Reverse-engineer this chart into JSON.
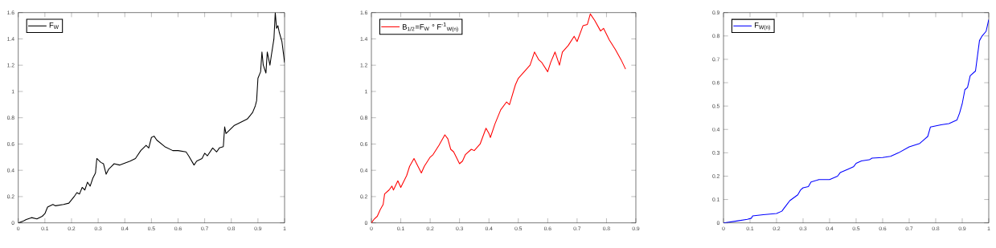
{
  "chart_data": [
    {
      "type": "line",
      "x": [
        0,
        0.02,
        0.03,
        0.05,
        0.07,
        0.09,
        0.1,
        0.11,
        0.13,
        0.14,
        0.17,
        0.19,
        0.21,
        0.22,
        0.23,
        0.24,
        0.25,
        0.26,
        0.27,
        0.28,
        0.29,
        0.295,
        0.31,
        0.32,
        0.33,
        0.34,
        0.35,
        0.36,
        0.38,
        0.42,
        0.44,
        0.46,
        0.48,
        0.49,
        0.5,
        0.51,
        0.52,
        0.55,
        0.58,
        0.6,
        0.63,
        0.64,
        0.66,
        0.67,
        0.69,
        0.7,
        0.71,
        0.73,
        0.745,
        0.755,
        0.77,
        0.775,
        0.78,
        0.81,
        0.83,
        0.86,
        0.88,
        0.89,
        0.895,
        0.9,
        0.91,
        0.915,
        0.92,
        0.93,
        0.935,
        0.945,
        0.95,
        0.96,
        0.965,
        0.97,
        0.975,
        0.98,
        0.99,
        1.0
      ],
      "series": [
        {
          "name": "F$_{W}$",
          "color": "#000000",
          "values": [
            0,
            0.015,
            0.025,
            0.04,
            0.03,
            0.05,
            0.07,
            0.12,
            0.14,
            0.13,
            0.14,
            0.15,
            0.2,
            0.23,
            0.22,
            0.27,
            0.25,
            0.31,
            0.28,
            0.34,
            0.38,
            0.49,
            0.46,
            0.45,
            0.37,
            0.41,
            0.43,
            0.45,
            0.44,
            0.47,
            0.49,
            0.55,
            0.59,
            0.57,
            0.65,
            0.66,
            0.63,
            0.58,
            0.55,
            0.55,
            0.54,
            0.51,
            0.44,
            0.47,
            0.49,
            0.53,
            0.51,
            0.57,
            0.54,
            0.57,
            0.58,
            0.73,
            0.68,
            0.74,
            0.76,
            0.79,
            0.84,
            0.89,
            0.93,
            1.1,
            1.15,
            1.3,
            1.2,
            1.14,
            1.3,
            1.2,
            1.27,
            1.4,
            1.6,
            1.48,
            1.5,
            1.45,
            1.38,
            1.22
          ]
        }
      ],
      "xlim": [
        0,
        1
      ],
      "ylim": [
        0,
        1.6
      ],
      "xticks": [
        0,
        0.1,
        0.2,
        0.3,
        0.4,
        0.5,
        0.6,
        0.7,
        0.8,
        0.9,
        1
      ],
      "yticks": [
        0,
        0.2,
        0.4,
        0.6,
        0.8,
        1,
        1.2,
        1.4,
        1.6
      ],
      "legend": "top left",
      "grid": false
    },
    {
      "type": "line",
      "x": [
        0,
        0.01,
        0.02,
        0.03,
        0.04,
        0.045,
        0.06,
        0.07,
        0.075,
        0.09,
        0.1,
        0.12,
        0.13,
        0.145,
        0.17,
        0.18,
        0.2,
        0.21,
        0.23,
        0.25,
        0.26,
        0.27,
        0.28,
        0.3,
        0.31,
        0.32,
        0.34,
        0.35,
        0.37,
        0.39,
        0.4,
        0.405,
        0.42,
        0.44,
        0.46,
        0.47,
        0.49,
        0.5,
        0.52,
        0.54,
        0.555,
        0.57,
        0.58,
        0.6,
        0.61,
        0.625,
        0.64,
        0.65,
        0.67,
        0.69,
        0.7,
        0.72,
        0.735,
        0.745,
        0.76,
        0.78,
        0.79,
        0.81,
        0.83,
        0.85,
        0.865
      ],
      "series": [
        {
          "name": "B$_{1/2}$=F$_{W}$ ° F$^{-1}$$_{W(n)}$",
          "color": "#ff0000",
          "values": [
            0,
            0.03,
            0.05,
            0.1,
            0.14,
            0.22,
            0.25,
            0.28,
            0.25,
            0.32,
            0.27,
            0.36,
            0.43,
            0.49,
            0.38,
            0.43,
            0.5,
            0.52,
            0.59,
            0.67,
            0.64,
            0.56,
            0.54,
            0.45,
            0.47,
            0.52,
            0.56,
            0.55,
            0.6,
            0.72,
            0.68,
            0.65,
            0.75,
            0.86,
            0.92,
            0.9,
            1.05,
            1.1,
            1.15,
            1.2,
            1.3,
            1.24,
            1.22,
            1.15,
            1.22,
            1.3,
            1.2,
            1.3,
            1.35,
            1.42,
            1.38,
            1.5,
            1.51,
            1.59,
            1.54,
            1.46,
            1.48,
            1.39,
            1.32,
            1.24,
            1.17
          ]
        }
      ],
      "xlim": [
        0,
        0.9
      ],
      "ylim": [
        0,
        1.6
      ],
      "xticks": [
        0,
        0.1,
        0.2,
        0.3,
        0.4,
        0.5,
        0.6,
        0.7,
        0.8,
        0.9
      ],
      "yticks": [
        0,
        0.2,
        0.4,
        0.6,
        0.8,
        1,
        1.2,
        1.4,
        1.6
      ],
      "legend": "top left",
      "grid": false
    },
    {
      "type": "line",
      "x": [
        0,
        0.05,
        0.09,
        0.105,
        0.11,
        0.15,
        0.2,
        0.22,
        0.24,
        0.25,
        0.28,
        0.29,
        0.3,
        0.32,
        0.33,
        0.36,
        0.4,
        0.43,
        0.44,
        0.47,
        0.49,
        0.5,
        0.52,
        0.55,
        0.56,
        0.6,
        0.63,
        0.66,
        0.7,
        0.74,
        0.76,
        0.77,
        0.78,
        0.82,
        0.85,
        0.88,
        0.89,
        0.9,
        0.91,
        0.92,
        0.93,
        0.95,
        0.965,
        0.975,
        0.99,
        1.0
      ],
      "series": [
        {
          "name": "F$_{W(n)}$",
          "color": "#0000ff",
          "values": [
            0,
            0.008,
            0.015,
            0.02,
            0.03,
            0.035,
            0.04,
            0.05,
            0.08,
            0.095,
            0.12,
            0.14,
            0.15,
            0.155,
            0.175,
            0.185,
            0.185,
            0.2,
            0.215,
            0.23,
            0.24,
            0.255,
            0.265,
            0.27,
            0.277,
            0.28,
            0.285,
            0.3,
            0.325,
            0.34,
            0.36,
            0.37,
            0.41,
            0.42,
            0.425,
            0.44,
            0.47,
            0.51,
            0.57,
            0.58,
            0.63,
            0.65,
            0.78,
            0.8,
            0.82,
            0.87
          ]
        }
      ],
      "xlim": [
        0,
        1
      ],
      "ylim": [
        0,
        0.9
      ],
      "xticks": [
        0,
        0.1,
        0.2,
        0.3,
        0.4,
        0.5,
        0.6,
        0.7,
        0.8,
        0.9,
        1
      ],
      "yticks": [
        0,
        0.1,
        0.2,
        0.3,
        0.4,
        0.5,
        0.6,
        0.7,
        0.8,
        0.9
      ],
      "legend": "top left",
      "grid": false
    }
  ]
}
